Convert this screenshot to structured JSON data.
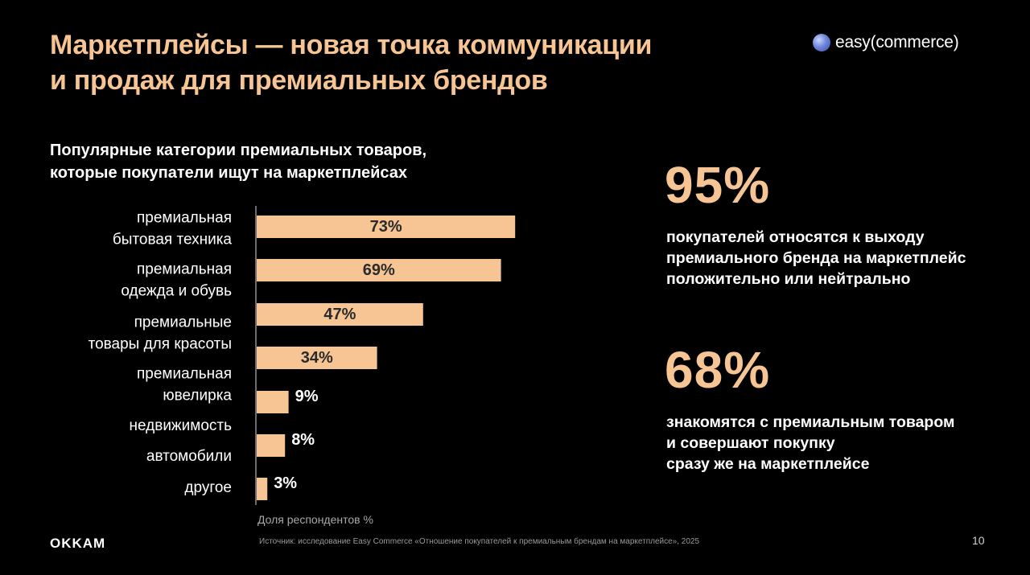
{
  "header": {
    "title_line1": "Маркетплейсы — новая точка коммуникации",
    "title_line2": "и продаж для премиальных брендов",
    "logo_text_easy": "easy",
    "logo_text_commerce": "(commerce)"
  },
  "chart_data": {
    "type": "bar",
    "orientation": "horizontal",
    "title_line1": "Популярные категории премиальных товаров,",
    "title_line2": "которые покупатели ищут на маркетплейсах",
    "xlabel": "Доля респондентов %",
    "categories": [
      [
        "премиальная",
        "бытовая техника"
      ],
      [
        "премиальная",
        "одежда и обувь"
      ],
      [
        "премиальные",
        "товары для красоты"
      ],
      [
        "премиальная",
        "ювелирка"
      ],
      [
        "недвижимость"
      ],
      [
        "автомобили"
      ],
      [
        "другое"
      ]
    ],
    "values": [
      73,
      69,
      47,
      34,
      9,
      8,
      3
    ],
    "value_labels": [
      "73%",
      "69%",
      "47%",
      "34%",
      "9%",
      "8%",
      "3%"
    ],
    "xlim": [
      0,
      100
    ],
    "grid": false,
    "bar_color": "#f7c594"
  },
  "stats": [
    {
      "value": "95%",
      "desc": [
        "покупателей относятся к выходу",
        "премиального бренда на маркетплейс",
        "положительно или нейтрально"
      ]
    },
    {
      "value": "68%",
      "desc": [
        "знакомятся с премиальным товаром",
        "и совершают покупку",
        "сразу же на маркетплейсе"
      ]
    }
  ],
  "footer": {
    "brand": "OKKAM",
    "source": "Источник: исследование Easy Commerce «Отношение покупателей к премиальным брендам на маркетплейсе», 2025",
    "page": "10"
  },
  "colors": {
    "accent": "#f7c594",
    "background": "#000000",
    "text": "#ffffff"
  }
}
